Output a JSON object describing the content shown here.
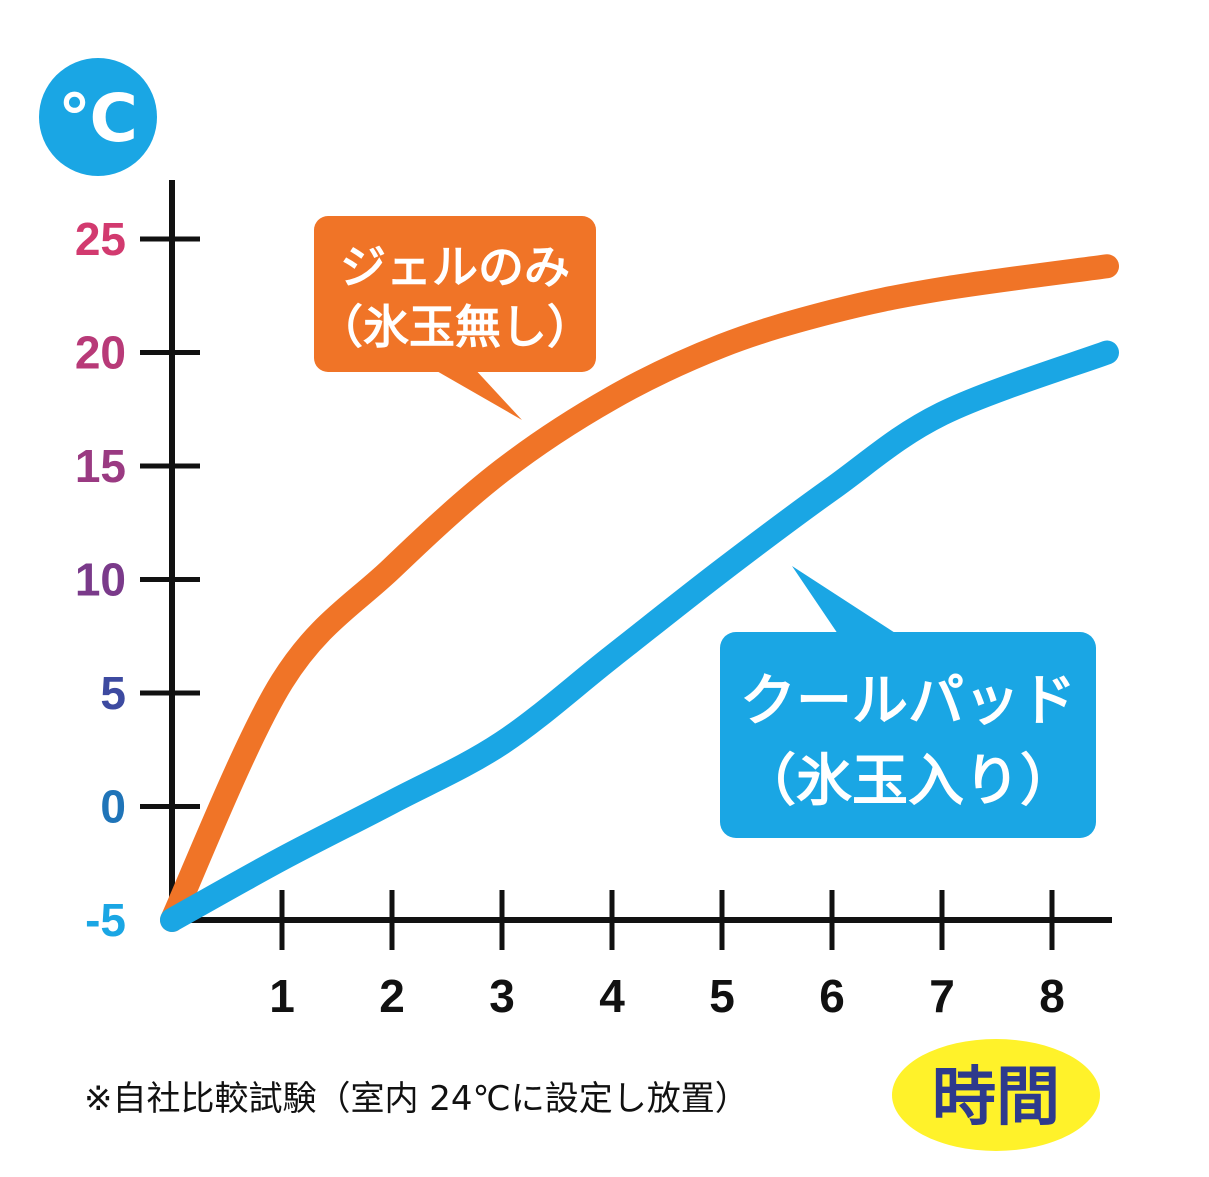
{
  "chart_data": {
    "type": "line",
    "y_unit_badge": "℃",
    "x_unit_badge": "時間",
    "footnote": "※自社比較試験（室内 24℃に設定し放置）",
    "x_ticks": [
      "1",
      "2",
      "3",
      "4",
      "5",
      "6",
      "7",
      "8"
    ],
    "y_ticks": [
      "25",
      "20",
      "15",
      "10",
      "5",
      "0",
      "-5"
    ],
    "ylim": [
      -5,
      27
    ],
    "xlim": [
      0,
      8.5
    ],
    "grid": false,
    "series": [
      {
        "name_line1": "ジェルのみ",
        "name_line2": "（氷玉無し）",
        "color": "#f07427",
        "x": [
          0,
          1,
          2,
          3,
          4,
          5,
          6,
          7,
          8.5
        ],
        "y": [
          -5,
          5.5,
          10.5,
          14.8,
          18,
          20.3,
          21.8,
          22.8,
          23.8
        ]
      },
      {
        "name_line1": "クールパッド",
        "name_line2": "（氷玉入り）",
        "color": "#1aa6e4",
        "x": [
          0,
          1,
          2,
          3,
          4,
          5,
          6,
          7,
          8.5
        ],
        "y": [
          -5,
          -2.3,
          0.2,
          2.8,
          6.6,
          10.4,
          14,
          17.3,
          20
        ]
      }
    ],
    "colors": {
      "axis": "#111111",
      "badge_celsius": "#1aa6e4",
      "badge_time": "#fff22a",
      "badge_time_text": "#2e3a8c",
      "x_tick_text": "#111111",
      "y_tick_colors": [
        "#d23a6f",
        "#b83a78",
        "#9a3a82",
        "#7a3a8a",
        "#3d4aa0",
        "#1f74b8",
        "#1aa6e4"
      ]
    }
  }
}
